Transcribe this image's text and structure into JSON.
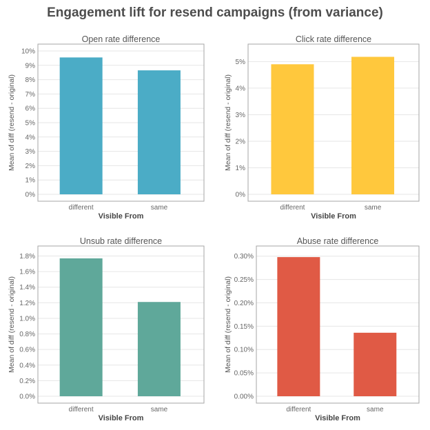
{
  "main_title": "Engagement lift for resend campaigns (from variance)",
  "colors": {
    "open": "#4bacc6",
    "click": "#ffc83d",
    "unsub": "#5fa89a",
    "abuse": "#e05a45",
    "gridline": "#e6e6e6",
    "frame": "#a6a6a6"
  },
  "chart_data": [
    {
      "type": "bar",
      "title": "Open rate difference",
      "xlabel": "Visible From",
      "ylabel": "Mean of diff (resend - original)",
      "categories": [
        "different",
        "same"
      ],
      "values": [
        9.55,
        8.65
      ],
      "ylim": [
        0,
        10
      ],
      "yticks": [
        0,
        1,
        2,
        3,
        4,
        5,
        6,
        7,
        8,
        9,
        10
      ],
      "ytick_labels": [
        "0%",
        "1%",
        "2%",
        "3%",
        "4%",
        "5%",
        "6%",
        "7%",
        "8%",
        "9%",
        "10%"
      ],
      "color": "#4bacc6",
      "grid": true
    },
    {
      "type": "bar",
      "title": "Click rate difference",
      "xlabel": "Visible From",
      "ylabel": "Mean of diff (resend - original)",
      "categories": [
        "different",
        "same"
      ],
      "values": [
        4.9,
        5.18
      ],
      "ylim": [
        0,
        5.4
      ],
      "yticks": [
        0,
        1,
        2,
        3,
        4,
        5
      ],
      "ytick_labels": [
        "0%",
        "1%",
        "2%",
        "3%",
        "4%",
        "5%"
      ],
      "color": "#ffc83d",
      "grid": true
    },
    {
      "type": "bar",
      "title": "Unsub rate difference",
      "xlabel": "Visible From",
      "ylabel": "Mean of diff (resend - original)",
      "categories": [
        "different",
        "same"
      ],
      "values": [
        1.77,
        1.21
      ],
      "ylim": [
        0,
        1.84
      ],
      "yticks": [
        0,
        0.2,
        0.4,
        0.6,
        0.8,
        1.0,
        1.2,
        1.4,
        1.6,
        1.8
      ],
      "ytick_labels": [
        "0.0%",
        "0.2%",
        "0.4%",
        "0.6%",
        "0.8%",
        "1.0%",
        "1.2%",
        "1.4%",
        "1.6%",
        "1.8%"
      ],
      "color": "#5fa89a",
      "grid": true
    },
    {
      "type": "bar",
      "title": "Abuse rate difference",
      "xlabel": "Visible From",
      "ylabel": "Mean of diff (resend - original)",
      "categories": [
        "different",
        "same"
      ],
      "values": [
        0.298,
        0.136
      ],
      "ylim": [
        0,
        0.307
      ],
      "yticks": [
        0,
        0.05,
        0.1,
        0.15,
        0.2,
        0.25,
        0.3
      ],
      "ytick_labels": [
        "0.00%",
        "0.05%",
        "0.10%",
        "0.15%",
        "0.20%",
        "0.25%",
        "0.30%"
      ],
      "color": "#e05a45",
      "grid": true
    }
  ]
}
